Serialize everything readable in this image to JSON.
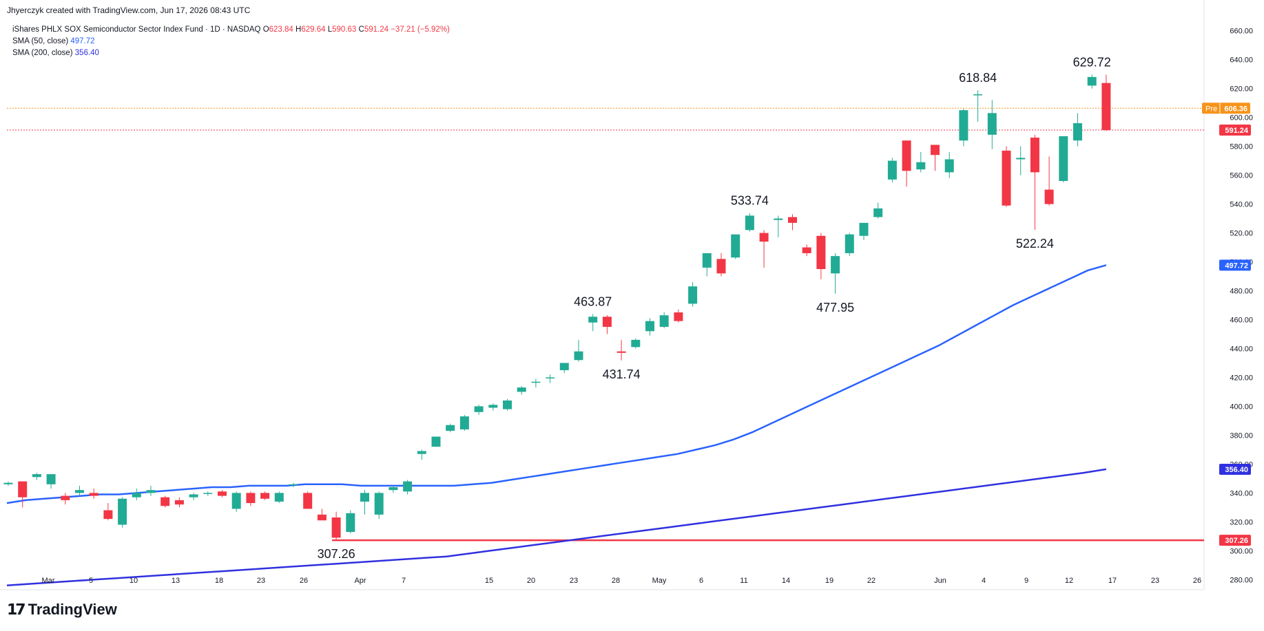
{
  "header": {
    "credit": "Jhyerczyk created with TradingView.com, Jun 17, 2026 08:43 UTC"
  },
  "legend": {
    "symbol": "iShares PHLX SOX Semiconductor Sector Index Fund · 1D · NASDAQ",
    "o_key": "O",
    "o_val": "623.84",
    "h_key": "H",
    "h_val": "629.64",
    "l_key": "L",
    "l_val": "590.63",
    "c_key": "C",
    "c_val": "591.24 −37.21 (−5.92%)",
    "sma50_label": "SMA (50, close)",
    "sma50_val": "497.72",
    "sma200_label": "SMA (200, close)",
    "sma200_val": "356.40"
  },
  "footer": {
    "brand": "TradingView"
  },
  "colors": {
    "up": "#22ab94",
    "down": "#f23645",
    "sma50": "#2962ff",
    "sma200": "#3030e0",
    "support": "#f23645",
    "premarket": "#f7931a"
  },
  "chart_data": {
    "type": "candlestick",
    "y_range": [
      273,
      667
    ],
    "y_ticks": [
      280,
      300,
      320,
      340,
      360,
      380,
      400,
      420,
      440,
      460,
      480,
      500,
      520,
      540,
      560,
      580,
      600,
      620,
      640,
      660
    ],
    "x_ticks": [
      "Mar",
      "5",
      "10",
      "13",
      "18",
      "23",
      "26",
      "Apr",
      "7",
      "15",
      "20",
      "23",
      "28",
      "May",
      "6",
      "11",
      "14",
      "19",
      "22",
      "Jun",
      "4",
      "9",
      "12",
      "17",
      "23",
      "26"
    ],
    "candles": [
      {
        "o": 346,
        "h": 348,
        "l": 345,
        "c": 347
      },
      {
        "o": 348,
        "h": 348,
        "l": 330,
        "c": 337
      },
      {
        "o": 351,
        "h": 354,
        "l": 349,
        "c": 353
      },
      {
        "o": 346,
        "h": 353,
        "l": 343,
        "c": 353
      },
      {
        "o": 338,
        "h": 340,
        "l": 332,
        "c": 335
      },
      {
        "o": 340,
        "h": 345,
        "l": 338,
        "c": 342
      },
      {
        "o": 340,
        "h": 343,
        "l": 336,
        "c": 338
      },
      {
        "o": 328,
        "h": 333,
        "l": 321,
        "c": 322
      },
      {
        "o": 318,
        "h": 337,
        "l": 316,
        "c": 336
      },
      {
        "o": 337,
        "h": 343,
        "l": 335,
        "c": 340
      },
      {
        "o": 340,
        "h": 345,
        "l": 338,
        "c": 342
      },
      {
        "o": 337,
        "h": 338,
        "l": 330,
        "c": 331
      },
      {
        "o": 335,
        "h": 337,
        "l": 330,
        "c": 332
      },
      {
        "o": 337,
        "h": 340,
        "l": 335,
        "c": 339
      },
      {
        "o": 340,
        "h": 341,
        "l": 338,
        "c": 340
      },
      {
        "o": 341,
        "h": 342,
        "l": 337,
        "c": 338
      },
      {
        "o": 329,
        "h": 341,
        "l": 327,
        "c": 340
      },
      {
        "o": 340,
        "h": 341,
        "l": 331,
        "c": 333
      },
      {
        "o": 340,
        "h": 341,
        "l": 335,
        "c": 336
      },
      {
        "o": 334,
        "h": 341,
        "l": 333,
        "c": 340
      },
      {
        "o": 346,
        "h": 347,
        "l": 344,
        "c": 346
      },
      {
        "o": 340,
        "h": 341,
        "l": 329,
        "c": 329
      },
      {
        "o": 325,
        "h": 329,
        "l": 322,
        "c": 321
      },
      {
        "o": 323,
        "h": 327,
        "l": 307.26,
        "c": 309
      },
      {
        "o": 313,
        "h": 328,
        "l": 312,
        "c": 326
      },
      {
        "o": 334,
        "h": 342,
        "l": 325,
        "c": 340
      },
      {
        "o": 325,
        "h": 341,
        "l": 322,
        "c": 340
      },
      {
        "o": 342,
        "h": 345,
        "l": 340,
        "c": 344
      },
      {
        "o": 341,
        "h": 349,
        "l": 339,
        "c": 348
      },
      {
        "o": 367,
        "h": 370,
        "l": 363,
        "c": 369
      },
      {
        "o": 372,
        "h": 379,
        "l": 372,
        "c": 379
      },
      {
        "o": 383,
        "h": 388,
        "l": 382,
        "c": 387
      },
      {
        "o": 384,
        "h": 394,
        "l": 383,
        "c": 393
      },
      {
        "o": 396,
        "h": 401,
        "l": 394,
        "c": 400
      },
      {
        "o": 399,
        "h": 402,
        "l": 397,
        "c": 401
      },
      {
        "o": 398,
        "h": 405,
        "l": 397,
        "c": 404
      },
      {
        "o": 410,
        "h": 414,
        "l": 408,
        "c": 413
      },
      {
        "o": 417,
        "h": 419,
        "l": 413,
        "c": 417
      },
      {
        "o": 420,
        "h": 422,
        "l": 416,
        "c": 420
      },
      {
        "o": 425,
        "h": 430,
        "l": 423,
        "c": 430
      },
      {
        "o": 432,
        "h": 446,
        "l": 431,
        "c": 438
      },
      {
        "o": 458,
        "h": 463.87,
        "l": 452,
        "c": 462
      },
      {
        "o": 462,
        "h": 463,
        "l": 450,
        "c": 455
      },
      {
        "o": 438,
        "h": 446,
        "l": 431.74,
        "c": 437
      },
      {
        "o": 441,
        "h": 447,
        "l": 440,
        "c": 446
      },
      {
        "o": 452,
        "h": 461,
        "l": 449,
        "c": 459
      },
      {
        "o": 455,
        "h": 465,
        "l": 454,
        "c": 463
      },
      {
        "o": 465,
        "h": 467,
        "l": 458,
        "c": 459
      },
      {
        "o": 471,
        "h": 486,
        "l": 469,
        "c": 483
      },
      {
        "o": 496,
        "h": 506,
        "l": 490,
        "c": 506
      },
      {
        "o": 502,
        "h": 506,
        "l": 490,
        "c": 492
      },
      {
        "o": 503,
        "h": 519,
        "l": 502,
        "c": 519
      },
      {
        "o": 522,
        "h": 533.74,
        "l": 521,
        "c": 532
      },
      {
        "o": 520,
        "h": 522,
        "l": 496,
        "c": 514
      },
      {
        "o": 529,
        "h": 532,
        "l": 517,
        "c": 530
      },
      {
        "o": 531,
        "h": 533,
        "l": 522,
        "c": 527
      },
      {
        "o": 510,
        "h": 512,
        "l": 504,
        "c": 506
      },
      {
        "o": 518,
        "h": 520,
        "l": 488,
        "c": 495
      },
      {
        "o": 492,
        "h": 506,
        "l": 477.95,
        "c": 504
      },
      {
        "o": 506,
        "h": 520,
        "l": 504,
        "c": 519
      },
      {
        "o": 518,
        "h": 527,
        "l": 515,
        "c": 527
      },
      {
        "o": 531,
        "h": 541,
        "l": 530,
        "c": 537
      },
      {
        "o": 557,
        "h": 572,
        "l": 555,
        "c": 570
      },
      {
        "o": 584,
        "h": 584,
        "l": 552,
        "c": 563
      },
      {
        "o": 564,
        "h": 576,
        "l": 562,
        "c": 569
      },
      {
        "o": 581,
        "h": 581,
        "l": 563,
        "c": 574
      },
      {
        "o": 562,
        "h": 576,
        "l": 558,
        "c": 571
      },
      {
        "o": 584,
        "h": 606,
        "l": 580,
        "c": 605
      },
      {
        "o": 616,
        "h": 618.84,
        "l": 597,
        "c": 616
      },
      {
        "o": 588,
        "h": 612,
        "l": 578,
        "c": 603
      },
      {
        "o": 577,
        "h": 580,
        "l": 538,
        "c": 539
      },
      {
        "o": 571,
        "h": 580,
        "l": 560,
        "c": 572
      },
      {
        "o": 586,
        "h": 588,
        "l": 522.24,
        "c": 562
      },
      {
        "o": 550,
        "h": 573,
        "l": 539,
        "c": 540
      },
      {
        "o": 556,
        "h": 587,
        "l": 555,
        "c": 587
      },
      {
        "o": 584,
        "h": 603,
        "l": 580,
        "c": 596
      },
      {
        "o": 622,
        "h": 629.72,
        "l": 620,
        "c": 628
      },
      {
        "o": 623.84,
        "h": 629.64,
        "l": 590.63,
        "c": 591.24
      }
    ],
    "sma50": [
      333,
      335,
      336,
      337,
      338,
      339,
      339,
      340,
      341,
      342,
      343,
      344,
      344,
      345,
      345,
      345,
      346,
      346,
      346,
      345,
      345,
      345,
      345,
      345,
      345,
      346,
      347,
      349,
      351,
      353,
      355,
      357,
      359,
      361,
      363,
      365,
      367,
      370,
      373,
      377,
      382,
      388,
      394,
      400,
      406,
      412,
      418,
      424,
      430,
      436,
      442,
      449,
      456,
      463,
      470,
      476,
      482,
      488,
      494,
      497.72
    ],
    "sma200": [
      276,
      277,
      278,
      279,
      280,
      281,
      282,
      283,
      284,
      285,
      286,
      287,
      288,
      289,
      290,
      291,
      292,
      293,
      294,
      295,
      296,
      298,
      300,
      302,
      304,
      306,
      308,
      310,
      312,
      314,
      316,
      318,
      320,
      322,
      324,
      326,
      328,
      330,
      332,
      334,
      336,
      338,
      340,
      342,
      344,
      346,
      348,
      350,
      352,
      354,
      356.4
    ],
    "support_level": 307.26,
    "premarket": {
      "label": "Pre",
      "value": 606.36
    },
    "last_price": 591.24,
    "price_labels": {
      "pre": "606.36",
      "last": "591.24",
      "sma50": "497.72",
      "sma200": "356.40",
      "support": "307.26"
    },
    "annotations": [
      {
        "text": "307.26",
        "index": 23,
        "value": 307.26,
        "pos": "below"
      },
      {
        "text": "463.87",
        "index": 41,
        "value": 463.87,
        "pos": "above"
      },
      {
        "text": "431.74",
        "index": 43,
        "value": 431.74,
        "pos": "below"
      },
      {
        "text": "533.74",
        "index": 52,
        "value": 533.74,
        "pos": "above"
      },
      {
        "text": "477.95",
        "index": 58,
        "value": 477.95,
        "pos": "below"
      },
      {
        "text": "618.84",
        "index": 68,
        "value": 618.84,
        "pos": "above"
      },
      {
        "text": "522.24",
        "index": 72,
        "value": 522.24,
        "pos": "below"
      },
      {
        "text": "629.72",
        "index": 76,
        "value": 629.72,
        "pos": "above"
      }
    ]
  }
}
